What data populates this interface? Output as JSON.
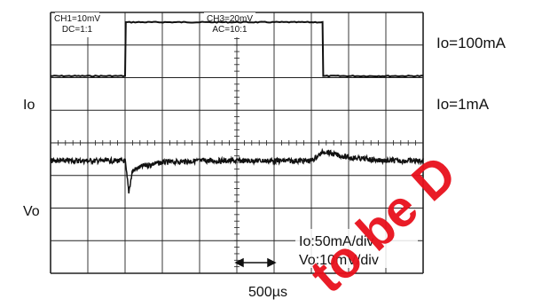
{
  "chart_data": {
    "type": "line",
    "channel_notes": [
      {
        "line1": "CH1=10mV",
        "line2": "DC=1:1"
      },
      {
        "line1": "CH3=20mV",
        "line2": "AC=10:1"
      }
    ],
    "left_labels": {
      "io": "Io",
      "vo": "Vo"
    },
    "right_labels": {
      "high": "Io=100mA",
      "low": "Io=1mA"
    },
    "scale_labels": {
      "io": "Io:50mA/div",
      "vo": "Vo:10mV/div"
    },
    "time_label": "500µs",
    "x_divisions": 10,
    "y_divisions": 8,
    "series": [
      {
        "name": "Io",
        "x_div": [
          0,
          2.0,
          2.02,
          7.3,
          7.32,
          10
        ],
        "y_div": [
          1.95,
          1.95,
          0.3,
          0.3,
          1.95,
          1.95
        ]
      },
      {
        "name": "Vo",
        "x_div": [
          0,
          2.0,
          2.1,
          2.2,
          2.5,
          3.0,
          4.0,
          5.0,
          7.0,
          7.35,
          7.6,
          8.0,
          8.5,
          9.0,
          10
        ],
        "y_div": [
          4.55,
          4.55,
          5.5,
          4.85,
          4.7,
          4.6,
          4.55,
          4.55,
          4.55,
          4.25,
          4.35,
          4.45,
          4.5,
          4.55,
          4.55
        ]
      }
    ],
    "watermark": "to be D",
    "grid": true,
    "colors": {
      "trace": "#111111",
      "grid": "#222222",
      "watermark": "#e8101c"
    }
  }
}
